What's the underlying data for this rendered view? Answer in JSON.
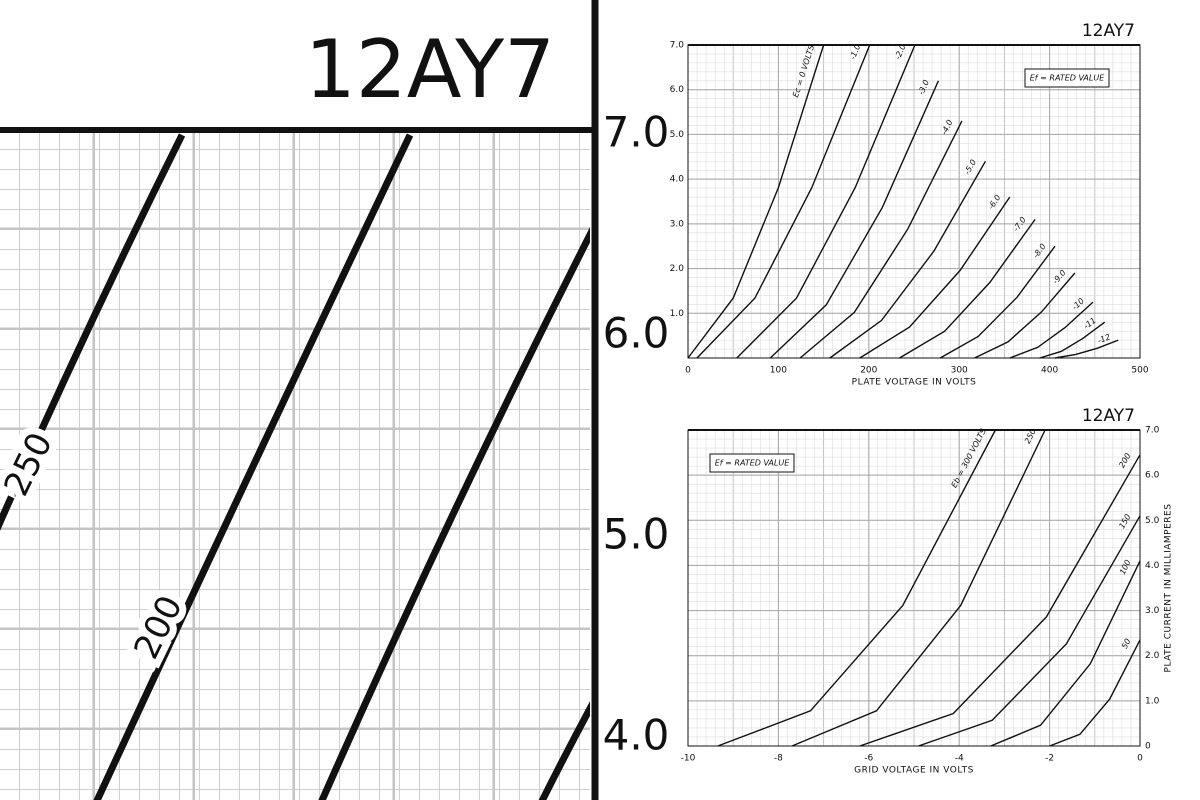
{
  "zoom": {
    "title": "12AY7",
    "labels": [
      "250",
      "200"
    ],
    "yticks": [
      {
        "value": 7,
        "label": "7.0"
      },
      {
        "value": 6,
        "label": "6.0"
      },
      {
        "value": 5,
        "label": "5.0"
      },
      {
        "value": 4,
        "label": "4.0"
      }
    ]
  },
  "chart_data": [
    {
      "type": "line",
      "title": "12AY7",
      "annotation": "Ef = RATED VALUE",
      "xlabel": "PLATE VOLTAGE IN VOLTS",
      "color": "#111111",
      "grid": true,
      "yaxis_side": "left",
      "xlim": [
        0,
        500
      ],
      "ylim": [
        0,
        7
      ],
      "xticks": [
        0,
        100,
        200,
        300,
        400,
        500
      ],
      "yticks": [
        {
          "value": 1,
          "label": "1.0"
        },
        {
          "value": 2,
          "label": "2.0"
        },
        {
          "value": 3,
          "label": "3.0"
        },
        {
          "value": 4,
          "label": "4.0"
        },
        {
          "value": 5,
          "label": "5.0"
        },
        {
          "value": 6,
          "label": "6.0"
        },
        {
          "value": 7,
          "label": "7.0"
        }
      ],
      "series": [
        {
          "name": "Ec = 0 VOLTS",
          "x": [
            0,
            50,
            100,
            150
          ],
          "values": [
            0,
            1.34,
            3.81,
            7.0
          ]
        },
        {
          "name": "-1.0",
          "x": [
            10,
            74,
            137,
            201
          ],
          "values": [
            0,
            1.34,
            3.81,
            7.0
          ]
        },
        {
          "name": "-2.0",
          "x": [
            54,
            120,
            185,
            251
          ],
          "values": [
            0,
            1.34,
            3.81,
            7.0
          ]
        },
        {
          "name": "-3.0",
          "x": [
            91,
            153,
            215,
            277
          ],
          "values": [
            0,
            1.19,
            3.37,
            6.2
          ]
        },
        {
          "name": "-4.0",
          "x": [
            124,
            184,
            243,
            303
          ],
          "values": [
            0,
            1.02,
            2.88,
            5.3
          ]
        },
        {
          "name": "-5.0",
          "x": [
            157,
            214,
            272,
            329
          ],
          "values": [
            0,
            0.84,
            2.39,
            4.4
          ]
        },
        {
          "name": "-6.0",
          "x": [
            190,
            245,
            301,
            356
          ],
          "values": [
            0,
            0.69,
            1.96,
            3.6
          ]
        },
        {
          "name": "-7.0",
          "x": [
            234,
            284,
            334,
            384
          ],
          "values": [
            0,
            0.6,
            1.69,
            3.1
          ]
        },
        {
          "name": "-8.0",
          "x": [
            279,
            321,
            364,
            406
          ],
          "values": [
            0,
            0.48,
            1.36,
            2.5
          ]
        },
        {
          "name": "-9.0",
          "x": [
            317,
            354,
            391,
            428
          ],
          "values": [
            0,
            0.36,
            1.03,
            1.9
          ]
        },
        {
          "name": "-10",
          "x": [
            356,
            387,
            417,
            448
          ],
          "values": [
            0,
            0.24,
            0.68,
            1.25
          ]
        },
        {
          "name": "-11",
          "x": [
            389,
            413,
            437,
            461
          ],
          "values": [
            0,
            0.15,
            0.44,
            0.8
          ]
        },
        {
          "name": "-12",
          "x": [
            406,
            429,
            453,
            476
          ],
          "values": [
            0,
            0.08,
            0.22,
            0.4
          ]
        }
      ]
    },
    {
      "type": "line",
      "title": "12AY7",
      "annotation": "Ef = RATED VALUE",
      "xlabel": "GRID VOLTAGE IN VOLTS",
      "ylabel": "PLATE CURRENT IN MILLIAMPERES",
      "color": "#111111",
      "grid": true,
      "yaxis_side": "right",
      "xlim": [
        -10,
        0
      ],
      "ylim": [
        0,
        7
      ],
      "xticks": [
        -10,
        -8,
        -6,
        -4,
        -2,
        0
      ],
      "yticks": [
        0,
        {
          "value": 1,
          "label": "1.0"
        },
        {
          "value": 2,
          "label": "2.0"
        },
        {
          "value": 3,
          "label": "3.0"
        },
        {
          "value": 4,
          "label": "4.0"
        },
        {
          "value": 5,
          "label": "5.0"
        },
        {
          "value": 6,
          "label": "6.0"
        },
        {
          "value": 7,
          "label": "7.0"
        }
      ],
      "series": [
        {
          "name": "Eb = 300 VOLTS",
          "x": [
            -9.34,
            -7.29,
            -5.25,
            -3.2
          ],
          "values": [
            0,
            0.78,
            3.11,
            7.0
          ]
        },
        {
          "name": "250",
          "x": [
            -7.7,
            -5.83,
            -3.97,
            -2.1
          ],
          "values": [
            0,
            0.78,
            3.11,
            7.0
          ]
        },
        {
          "name": "200",
          "x": [
            -6.2,
            -4.13,
            -2.07,
            0
          ],
          "values": [
            0,
            0.72,
            2.86,
            6.45
          ]
        },
        {
          "name": "150",
          "x": [
            -4.9,
            -3.27,
            -1.63,
            0
          ],
          "values": [
            0,
            0.57,
            2.26,
            5.1
          ]
        },
        {
          "name": "100",
          "x": [
            -3.3,
            -2.2,
            -1.1,
            0
          ],
          "values": [
            0,
            0.46,
            1.82,
            4.1
          ]
        },
        {
          "name": "50",
          "x": [
            -2.0,
            -1.33,
            -0.67,
            0
          ],
          "values": [
            0,
            0.26,
            1.04,
            2.35
          ]
        }
      ]
    }
  ]
}
